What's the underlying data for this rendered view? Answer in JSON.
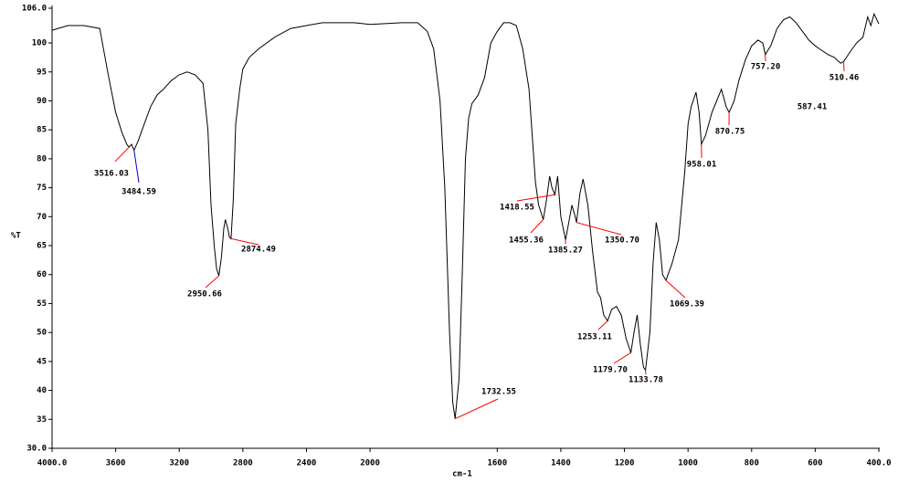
{
  "chart_data": {
    "type": "line",
    "xlabel": "cm-1",
    "ylabel": "%T",
    "xlim": [
      4000,
      400
    ],
    "xbreak": {
      "at": 2000,
      "factor": 2
    },
    "xticks": [
      {
        "value": 4000,
        "label": "4000.0"
      },
      3600,
      3200,
      2800,
      2400,
      2000,
      1600,
      1400,
      1200,
      1000,
      800,
      600,
      {
        "value": 400,
        "label": "400.0"
      }
    ],
    "ylim": [
      30,
      106
    ],
    "yticks": [
      {
        "value": 30,
        "label": "30.0"
      },
      35,
      40,
      45,
      50,
      55,
      60,
      65,
      70,
      75,
      80,
      85,
      90,
      95,
      100,
      {
        "value": 106,
        "label": "106.0"
      }
    ],
    "color": "#000000",
    "x": [
      4000,
      3900,
      3800,
      3700,
      3650,
      3600,
      3560,
      3530,
      3516.03,
      3500,
      3484.59,
      3460,
      3420,
      3380,
      3340,
      3300,
      3250,
      3200,
      3150,
      3100,
      3050,
      3020,
      3000,
      2980,
      2965,
      2950.66,
      2935,
      2920,
      2910,
      2895,
      2885,
      2874.49,
      2860,
      2845,
      2820,
      2800,
      2760,
      2700,
      2600,
      2500,
      2400,
      2300,
      2200,
      2100,
      2000,
      1900,
      1850,
      1820,
      1800,
      1780,
      1765,
      1750,
      1740,
      1732.55,
      1720,
      1710,
      1700,
      1690,
      1680,
      1660,
      1640,
      1620,
      1600,
      1580,
      1560,
      1540,
      1520,
      1500,
      1490,
      1480,
      1470,
      1455.36,
      1445,
      1435,
      1428,
      1418.55,
      1410,
      1400,
      1385.27,
      1375,
      1365,
      1355,
      1350.7,
      1340,
      1330,
      1315,
      1300,
      1285,
      1275,
      1265,
      1253.11,
      1240,
      1225,
      1210,
      1195,
      1179.7,
      1170,
      1160,
      1150,
      1140,
      1133.78,
      1120,
      1110,
      1100,
      1090,
      1080,
      1069.39,
      1050,
      1030,
      1010,
      1000,
      990,
      975,
      965,
      958.01,
      945,
      925,
      910,
      895,
      880,
      870.75,
      855,
      840,
      820,
      800,
      780,
      765,
      757.2,
      740,
      720,
      700,
      680,
      660,
      640,
      620,
      600,
      587.41,
      560,
      540,
      520,
      510.46,
      490,
      470,
      450,
      435,
      425,
      415,
      400
    ],
    "values": [
      102.2,
      103,
      103,
      102.5,
      95,
      88,
      84.5,
      82.5,
      82,
      82.5,
      81.5,
      83,
      86,
      89,
      91,
      92,
      93.5,
      94.5,
      95,
      94.5,
      93,
      85,
      72,
      65,
      61,
      59.8,
      63,
      68,
      69.5,
      68,
      66.5,
      66.2,
      73,
      86,
      92,
      95.5,
      97.5,
      99,
      101,
      102.5,
      103,
      103.5,
      103.5,
      103.5,
      103.2,
      103.5,
      103.5,
      102,
      99,
      90,
      75,
      50,
      38,
      35.1,
      42,
      60,
      80,
      87,
      89.5,
      91,
      94,
      100,
      102,
      103.5,
      103.5,
      103,
      99,
      92,
      84,
      76,
      72,
      69.5,
      73,
      77,
      75,
      73.8,
      77,
      70,
      66,
      69,
      72,
      70,
      69,
      74,
      76.5,
      72,
      64,
      57,
      56,
      53,
      52,
      54,
      54.5,
      53,
      49,
      46.5,
      50,
      53,
      48,
      44,
      43.5,
      50,
      62,
      69,
      66,
      60,
      59,
      62,
      66,
      78,
      86,
      89,
      91.5,
      88,
      82.5,
      84,
      88,
      90,
      92,
      89,
      88,
      90,
      93.5,
      97,
      99.5,
      100.5,
      100,
      98,
      99.5,
      102.5,
      104,
      104.5,
      103.5,
      102,
      100.5,
      99.5,
      99,
      98,
      97.5,
      96.5,
      96.8,
      98.5,
      100,
      101,
      104.5,
      103,
      105,
      103.3
    ],
    "peaks": [
      {
        "x": 3516.03,
        "label": "3516.03",
        "y": 82,
        "color": "#ff0000"
      },
      {
        "x": 3484.59,
        "label": "3484.59",
        "y": 81.5,
        "color": "#0000cc"
      },
      {
        "x": 2950.66,
        "label": "2950.66",
        "y": 59.8,
        "color": "#ff0000"
      },
      {
        "x": 2874.49,
        "label": "2874.49",
        "y": 66.2,
        "color": "#ff0000"
      },
      {
        "x": 1732.55,
        "label": "1732.55",
        "y": 35.1,
        "color": "#ff0000"
      },
      {
        "x": 1418.55,
        "label": "1418.55",
        "y": 73.8,
        "color": "#ff0000"
      },
      {
        "x": 1455.36,
        "label": "1455.36",
        "y": 69.5,
        "color": "#ff0000"
      },
      {
        "x": 1385.27,
        "label": "1385.27",
        "y": 66,
        "color": "#ff0000"
      },
      {
        "x": 1350.7,
        "label": "1350.70",
        "y": 69,
        "color": "#ff0000"
      },
      {
        "x": 1253.11,
        "label": "1253.11",
        "y": 52,
        "color": "#ff0000"
      },
      {
        "x": 1179.7,
        "label": "1179.70",
        "y": 46.5,
        "color": "#ff0000"
      },
      {
        "x": 1133.78,
        "label": "1133.78",
        "y": 43.5,
        "color": "#ff0000"
      },
      {
        "x": 1069.39,
        "label": "1069.39",
        "y": 59,
        "color": "#ff0000"
      },
      {
        "x": 958.01,
        "label": "958.01",
        "y": 82.5,
        "color": "#ff0000"
      },
      {
        "x": 870.75,
        "label": "870.75",
        "y": 88,
        "color": "#ff0000"
      },
      {
        "x": 757.2,
        "label": "757.20",
        "y": 98,
        "color": "#ff0000"
      },
      {
        "x": 587.41,
        "label": "587.41"
      },
      {
        "x": 510.46,
        "label": "510.46",
        "y": 96.8,
        "color": "#ff0000"
      }
    ]
  }
}
